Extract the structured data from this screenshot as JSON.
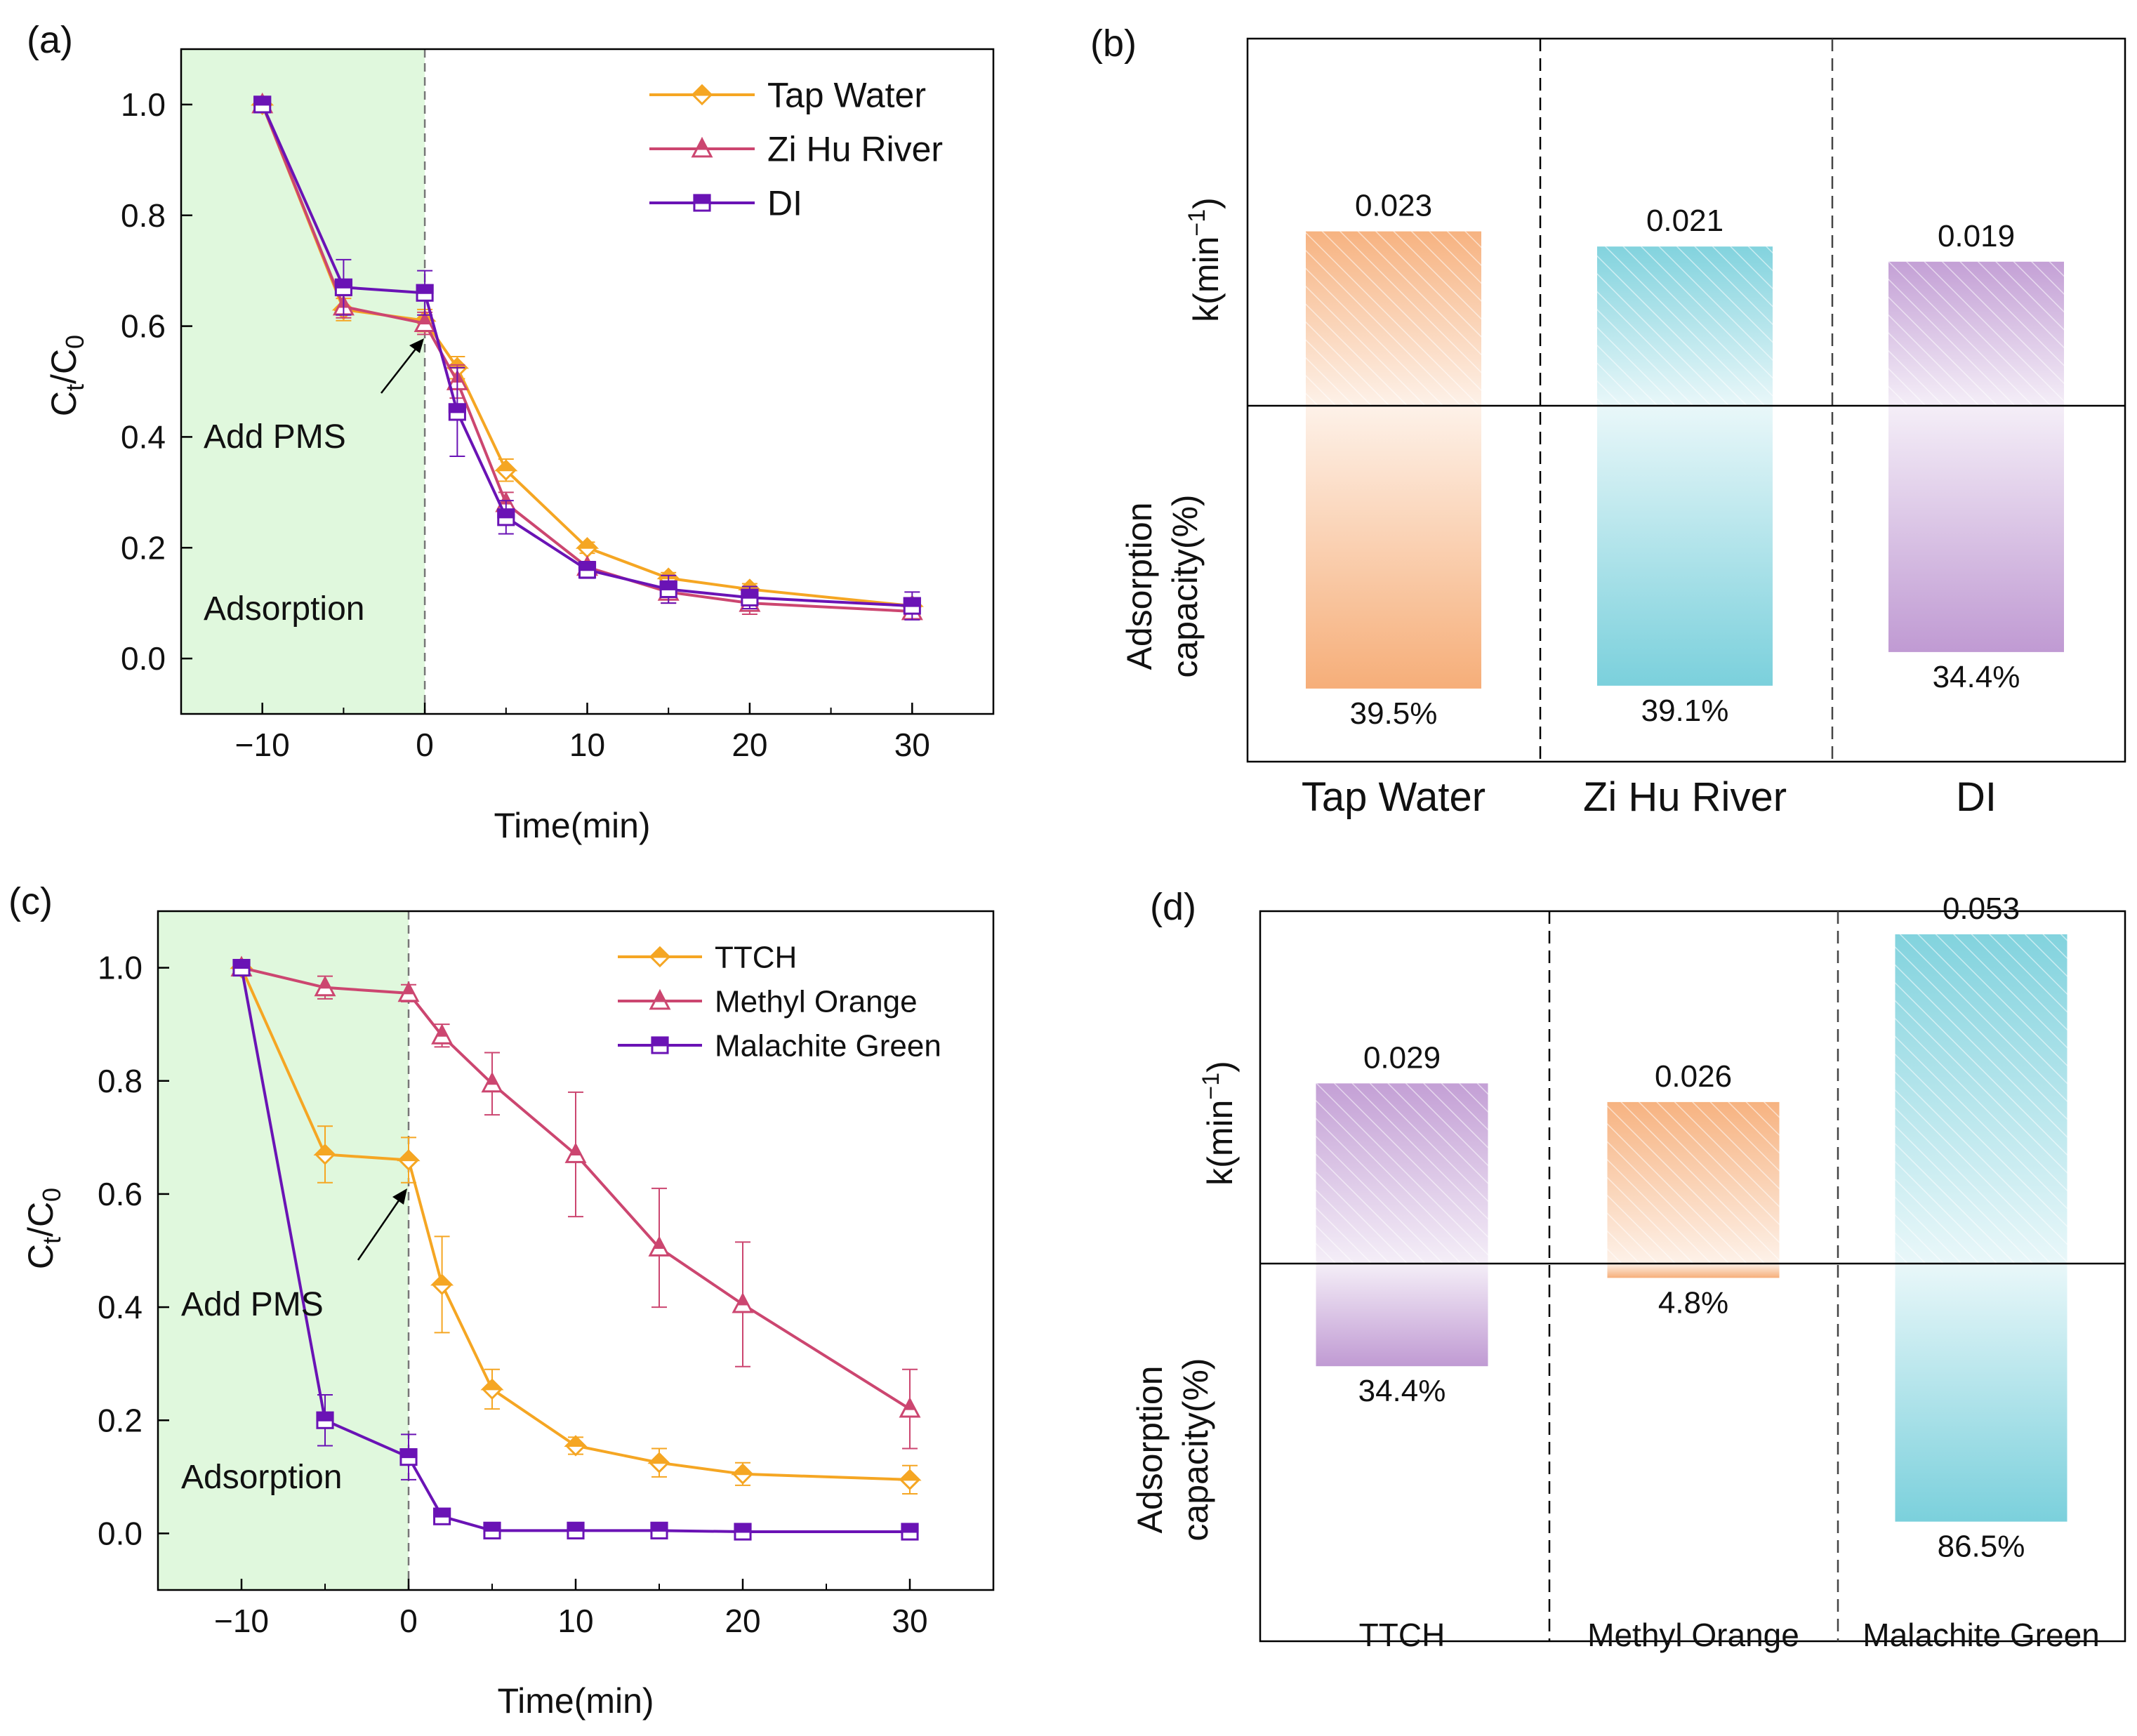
{
  "colors": {
    "orange": "#f5a623",
    "crimson": "#cc4670",
    "purple": "#6a13b5",
    "shade": "#e0f8dd",
    "bar_orange": "#f5a56a",
    "bar_cyan": "#6ccbd8",
    "bar_purple": "#b98fce"
  },
  "chart_data": [
    {
      "panel": "(a)",
      "type": "line",
      "xlabel": "Time(min)",
      "ylabel": "Ct/C0",
      "ylabel_main": "C",
      "ylabel_sub1": "t",
      "ylabel_slash": "/C",
      "ylabel_sub2": "0",
      "xlim": [
        -15,
        35
      ],
      "ylim": [
        -0.1,
        1.1
      ],
      "xticks": [
        -10,
        0,
        10,
        20,
        30
      ],
      "yticks": [
        0.0,
        0.2,
        0.4,
        0.6,
        0.8,
        1.0
      ],
      "annotation_adsorption": "Adsorption",
      "annotation_pms": "Add PMS",
      "x": [
        -10,
        -5,
        0,
        2,
        5,
        10,
        15,
        20,
        30
      ],
      "series": [
        {
          "name": "Tap Water",
          "color": "#f5a623",
          "marker": "diamond",
          "values": [
            1.0,
            0.63,
            0.61,
            0.525,
            0.34,
            0.2,
            0.145,
            0.125,
            0.095
          ],
          "errors": [
            0.01,
            0.02,
            0.02,
            0.02,
            0.02,
            0.01,
            0.01,
            0.01,
            0.01
          ]
        },
        {
          "name": "Zi Hu River",
          "color": "#cc4670",
          "marker": "triangle",
          "values": [
            1.0,
            0.635,
            0.605,
            0.5,
            0.28,
            0.165,
            0.12,
            0.1,
            0.085
          ],
          "errors": [
            0.01,
            0.02,
            0.02,
            0.03,
            0.02,
            0.01,
            0.02,
            0.02,
            0.01
          ]
        },
        {
          "name": "DI",
          "color": "#6a13b5",
          "marker": "square",
          "values": [
            1.0,
            0.67,
            0.66,
            0.445,
            0.255,
            0.16,
            0.125,
            0.11,
            0.095
          ],
          "errors": [
            0.01,
            0.05,
            0.04,
            0.08,
            0.03,
            0.015,
            0.025,
            0.02,
            0.025
          ]
        }
      ]
    },
    {
      "panel": "(b)",
      "type": "bar",
      "categories": [
        "Tap Water",
        "Zi Hu River",
        "DI"
      ],
      "ylabel_top": "k(min",
      "ylabel_top_sup": "−1",
      "ylabel_top_close": ")",
      "ylabel_bottom_1": "Adsorption",
      "ylabel_bottom_2": "capacity(%)",
      "k_values": [
        0.023,
        0.021,
        0.019
      ],
      "k_labels": [
        "0.023",
        "0.021",
        "0.019"
      ],
      "adsorption_values": [
        39.5,
        39.1,
        34.4
      ],
      "adsorption_labels": [
        "39.5%",
        "39.1%",
        "34.4%"
      ],
      "bar_colors": [
        "#f5a56a",
        "#6ccbd8",
        "#b98fce"
      ]
    },
    {
      "panel": "(c)",
      "type": "line",
      "xlabel": "Time(min)",
      "ylabel": "Ct/C0",
      "ylabel_main": "C",
      "ylabel_sub1": "t",
      "ylabel_slash": "/C",
      "ylabel_sub2": "0",
      "xlim": [
        -15,
        35
      ],
      "ylim": [
        -0.1,
        1.1
      ],
      "xticks": [
        -10,
        0,
        10,
        20,
        30
      ],
      "yticks": [
        0.0,
        0.2,
        0.4,
        0.6,
        0.8,
        1.0
      ],
      "annotation_adsorption": "Adsorption",
      "annotation_pms": "Add PMS",
      "x": [
        -10,
        -5,
        0,
        2,
        5,
        10,
        15,
        20,
        30
      ],
      "series": [
        {
          "name": "TTCH",
          "color": "#f5a623",
          "marker": "diamond",
          "values": [
            1.0,
            0.67,
            0.66,
            0.44,
            0.255,
            0.155,
            0.125,
            0.105,
            0.095
          ],
          "errors": [
            0.01,
            0.05,
            0.04,
            0.085,
            0.035,
            0.015,
            0.025,
            0.02,
            0.025
          ]
        },
        {
          "name": "Methyl Orange",
          "color": "#cc4670",
          "marker": "triangle",
          "values": [
            1.0,
            0.965,
            0.955,
            0.88,
            0.795,
            0.67,
            0.505,
            0.405,
            0.22
          ],
          "errors": [
            0.01,
            0.02,
            0.015,
            0.02,
            0.055,
            0.11,
            0.105,
            0.11,
            0.07
          ]
        },
        {
          "name": "Malachite Green",
          "color": "#6a13b5",
          "marker": "square",
          "values": [
            1.0,
            0.2,
            0.135,
            0.03,
            0.005,
            0.005,
            0.005,
            0.003,
            0.003
          ],
          "errors": [
            0.01,
            0.045,
            0.04,
            0.01,
            0.01,
            0.005,
            0.005,
            0.005,
            0.005
          ]
        }
      ]
    },
    {
      "panel": "(d)",
      "type": "bar",
      "categories": [
        "TTCH",
        "Methyl Orange",
        "Malachite Green"
      ],
      "ylabel_top": "k(min",
      "ylabel_top_sup": "−1",
      "ylabel_top_close": ")",
      "ylabel_bottom_1": "Adsorption",
      "ylabel_bottom_2": "capacity(%)",
      "k_values": [
        0.029,
        0.026,
        0.053
      ],
      "k_labels": [
        "0.029",
        "0.026",
        "0.053"
      ],
      "adsorption_values": [
        34.4,
        4.8,
        86.5
      ],
      "adsorption_labels": [
        "34.4%",
        "4.8%",
        "86.5%"
      ],
      "bar_colors": [
        "#b98fce",
        "#f5a56a",
        "#6ccbd8"
      ]
    }
  ]
}
